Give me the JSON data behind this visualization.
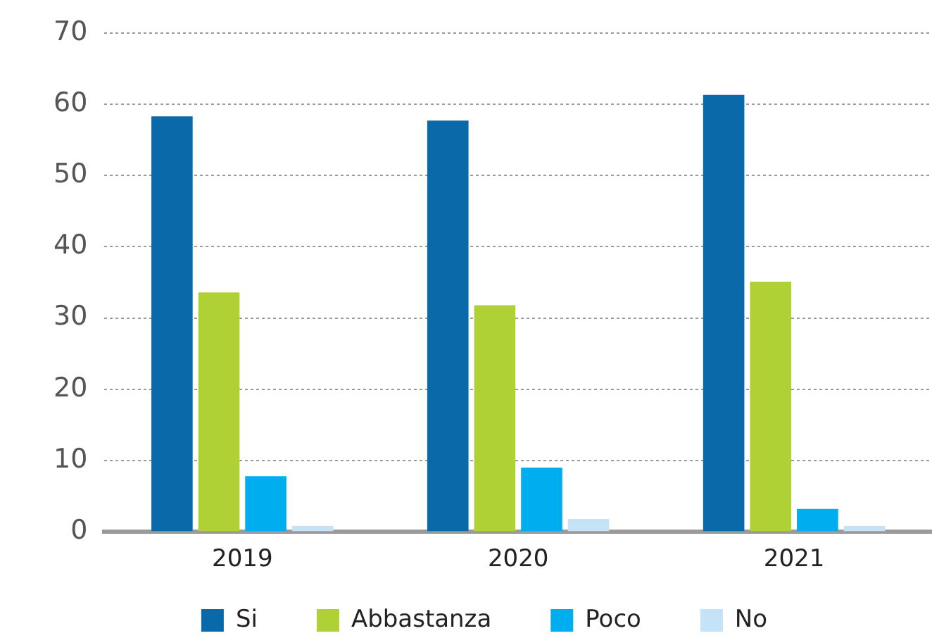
{
  "chart_data": {
    "type": "bar",
    "categories": [
      "2019",
      "2020",
      "2021"
    ],
    "series": [
      {
        "name": "Si",
        "color": "#0a69a9",
        "values": [
          58.3,
          57.7,
          61.3
        ]
      },
      {
        "name": "Abbastanza",
        "color": "#afd135",
        "values": [
          33.6,
          31.8,
          35.1
        ]
      },
      {
        "name": "Poco",
        "color": "#00aeef",
        "values": [
          7.8,
          9.0,
          3.2
        ]
      },
      {
        "name": "No",
        "color": "#c5e3f6",
        "values": [
          0.8,
          1.8,
          0.8
        ]
      }
    ],
    "ylim": [
      0,
      70
    ],
    "yticks": [
      0,
      10,
      20,
      30,
      40,
      50,
      60,
      70
    ],
    "grid": "y",
    "legend": "bottom"
  }
}
